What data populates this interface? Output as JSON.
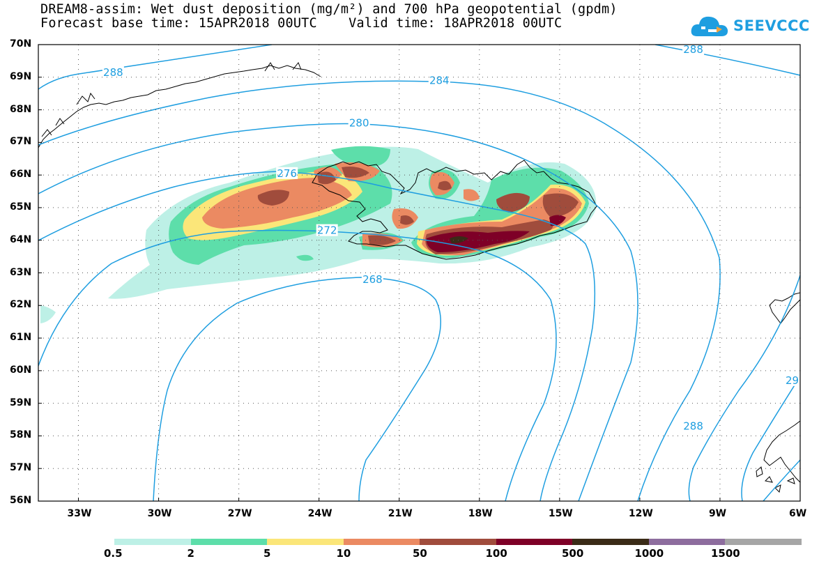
{
  "title": {
    "line1": "DREAM8-assim: Wet dust deposition (mg/m²) and 700 hPa geopotential (gpdm)",
    "line2": "Forecast base time: 15APR2018 00UTC    Valid time: 18APR2018 00UTC"
  },
  "logo": {
    "text": "SEEVCCC",
    "icon": "cloud-logo-icon",
    "color": "#1e9ee0"
  },
  "map": {
    "lat_range": [
      56,
      70
    ],
    "lon_range": [
      -34.5,
      -6
    ],
    "lat_ticks": [
      "70N",
      "69N",
      "68N",
      "67N",
      "66N",
      "65N",
      "64N",
      "63N",
      "62N",
      "61N",
      "60N",
      "59N",
      "58N",
      "57N",
      "56N"
    ],
    "lon_ticks": [
      "33W",
      "30W",
      "27W",
      "24W",
      "21W",
      "18W",
      "15W",
      "12W",
      "9W",
      "6W"
    ],
    "gridlines": "dotted",
    "contour_color": "#1e9ee0",
    "contour_labels": [
      {
        "text": "288",
        "lon": -31.7,
        "lat": 69.15
      },
      {
        "text": "288",
        "lon": -10.0,
        "lat": 69.85
      },
      {
        "text": "284",
        "lon": -19.5,
        "lat": 68.9
      },
      {
        "text": "280",
        "lon": -22.5,
        "lat": 67.6
      },
      {
        "text": "276",
        "lon": -25.2,
        "lat": 66.05
      },
      {
        "text": "272",
        "lon": -23.7,
        "lat": 64.3
      },
      {
        "text": "268",
        "lon": -22.0,
        "lat": 62.8
      },
      {
        "text": "288",
        "lon": -10.0,
        "lat": 58.3
      },
      {
        "text": "29",
        "lon": -6.3,
        "lat": 59.7
      }
    ]
  },
  "legend": {
    "colors": [
      "#bdf0e6",
      "#5ddeaa",
      "#fbe679",
      "#eb8a62",
      "#a04c3c",
      "#7e0027",
      "#3a2b17",
      "#8d6d9e",
      "#a6a6a6"
    ],
    "labels": [
      "0.5",
      "2",
      "5",
      "10",
      "50",
      "100",
      "500",
      "1000",
      "1500"
    ]
  }
}
